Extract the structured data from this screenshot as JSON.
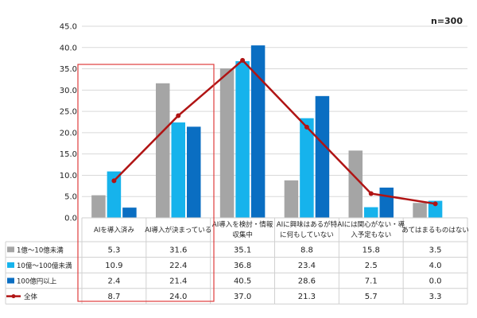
{
  "note": "n=300",
  "colors": {
    "series1": "#a5a5a5",
    "series2": "#16b3ec",
    "series3": "#0a6ec2",
    "line": "#b01414",
    "highlight": "#e03c3c",
    "grid": "#d9d9d9"
  },
  "chart_data": {
    "type": "bar",
    "combo": "bar+line",
    "categories": [
      [
        "AIを導入済み"
      ],
      [
        "AI導入が決まっている"
      ],
      [
        "AI導入を検討・情報",
        "収集中"
      ],
      [
        "AIに興味はあるが特",
        "に何もしていない"
      ],
      [
        "AIには関心がない・導",
        "入予定もない"
      ],
      [
        "あてはまるものはない"
      ]
    ],
    "ylim": [
      0,
      45
    ],
    "yticks": [
      "0.0",
      "5.0",
      "10.0",
      "15.0",
      "20.0",
      "25.0",
      "30.0",
      "35.0",
      "40.0",
      "45.0"
    ],
    "grid": true,
    "legend_placement": "table-left",
    "series": [
      {
        "name": "1億～10億未満",
        "kind": "bar",
        "color_key": "series1",
        "values": [
          5.3,
          31.6,
          35.1,
          8.8,
          15.8,
          3.5
        ],
        "labels": [
          "5.3",
          "31.6",
          "35.1",
          "8.8",
          "15.8",
          "3.5"
        ]
      },
      {
        "name": "10億～100億未満",
        "kind": "bar",
        "color_key": "series2",
        "values": [
          10.9,
          22.4,
          36.8,
          23.4,
          2.5,
          4.0
        ],
        "labels": [
          "10.9",
          "22.4",
          "36.8",
          "23.4",
          "2.5",
          "4.0"
        ]
      },
      {
        "name": "100億円以上",
        "kind": "bar",
        "color_key": "series3",
        "values": [
          2.4,
          21.4,
          40.5,
          28.6,
          7.1,
          0.0
        ],
        "labels": [
          "2.4",
          "21.4",
          "40.5",
          "28.6",
          "7.1",
          "0.0"
        ]
      },
      {
        "name": "全体",
        "kind": "line",
        "color_key": "line",
        "values": [
          8.7,
          24.0,
          37.0,
          21.3,
          5.7,
          3.3
        ],
        "labels": [
          "8.7",
          "24.0",
          "37.0",
          "21.3",
          "5.7",
          "3.3"
        ]
      }
    ]
  }
}
